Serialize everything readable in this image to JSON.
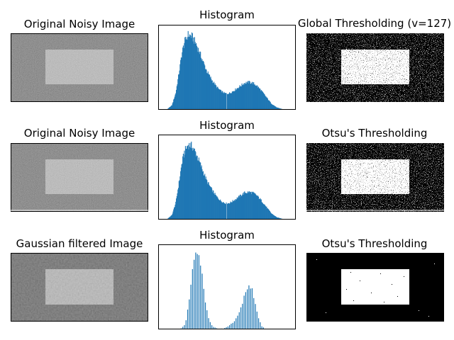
{
  "figure": {
    "background": "#ffffff",
    "bar_color": "#1f77b4",
    "axes_color": "#000000"
  },
  "panels": [
    {
      "title": "Original Noisy Image",
      "kind": "image",
      "content": "noisy-image"
    },
    {
      "title": "Histogram",
      "kind": "histogram"
    },
    {
      "title": "Global Thresholding (v=127)",
      "kind": "image",
      "content": "global-threshold-image"
    },
    {
      "title": "Original Noisy Image",
      "kind": "image",
      "content": "noisy-image"
    },
    {
      "title": "Histogram",
      "kind": "histogram"
    },
    {
      "title": "Otsu's Thresholding",
      "kind": "image",
      "content": "otsu-threshold-image"
    },
    {
      "title": "Gaussian filtered Image",
      "kind": "image",
      "content": "gaussian-filtered-image"
    },
    {
      "title": "Histogram",
      "kind": "histogram"
    },
    {
      "title": "Otsu's Thresholding",
      "kind": "image",
      "content": "otsu-filtered-threshold-image"
    }
  ],
  "chart_data": [
    {
      "type": "bar",
      "title": "Histogram",
      "xlabel": "",
      "ylabel": "",
      "xlim": [
        0,
        255
      ],
      "ylim": [
        0,
        1.1
      ],
      "axis_ticks": "hidden",
      "grid": false,
      "bins": 256,
      "x": [
        0,
        15,
        25,
        32,
        38,
        43,
        48,
        55,
        62,
        70,
        80,
        90,
        100,
        108,
        115,
        122,
        127,
        133,
        140,
        150,
        160,
        168,
        175,
        182,
        190,
        200,
        210,
        220,
        230,
        240,
        250,
        255
      ],
      "values": [
        0,
        0,
        0.06,
        0.22,
        0.48,
        0.72,
        0.88,
        0.98,
        0.96,
        0.86,
        0.68,
        0.5,
        0.38,
        0.3,
        0.25,
        0.22,
        0.21,
        0.22,
        0.25,
        0.3,
        0.35,
        0.36,
        0.35,
        0.32,
        0.26,
        0.17,
        0.08,
        0.03,
        0.01,
        0,
        0,
        0
      ],
      "dip_bins": [
        127
      ]
    },
    {
      "type": "bar",
      "title": "Histogram",
      "xlabel": "",
      "ylabel": "",
      "xlim": [
        0,
        255
      ],
      "ylim": [
        0,
        1.1
      ],
      "axis_ticks": "hidden",
      "grid": false,
      "bins": 256,
      "x": [
        0,
        15,
        25,
        32,
        38,
        43,
        48,
        55,
        62,
        70,
        80,
        90,
        100,
        108,
        115,
        122,
        127,
        133,
        140,
        150,
        160,
        168,
        175,
        182,
        190,
        200,
        210,
        220,
        230,
        240,
        250,
        255
      ],
      "values": [
        0,
        0,
        0.06,
        0.22,
        0.48,
        0.72,
        0.88,
        0.98,
        0.96,
        0.86,
        0.68,
        0.5,
        0.38,
        0.3,
        0.25,
        0.22,
        0.21,
        0.22,
        0.25,
        0.3,
        0.35,
        0.36,
        0.35,
        0.32,
        0.26,
        0.17,
        0.08,
        0.03,
        0.01,
        0,
        0,
        0
      ],
      "dip_bins": [
        127
      ]
    },
    {
      "type": "bar",
      "title": "Histogram",
      "xlabel": "",
      "ylabel": "",
      "xlim": [
        0,
        255
      ],
      "ylim": [
        0,
        1.1
      ],
      "axis_ticks": "hidden",
      "grid": false,
      "bins": 256,
      "x": [
        0,
        40,
        50,
        58,
        65,
        70,
        75,
        80,
        85,
        92,
        100,
        110,
        120,
        130,
        140,
        150,
        158,
        165,
        170,
        175,
        180,
        186,
        192,
        200,
        255
      ],
      "values": [
        0,
        0,
        0.07,
        0.45,
        0.88,
        0.98,
        0.95,
        0.75,
        0.45,
        0.16,
        0.04,
        0.01,
        0.01,
        0.04,
        0.1,
        0.22,
        0.4,
        0.53,
        0.56,
        0.5,
        0.33,
        0.14,
        0.04,
        0,
        0
      ],
      "comb_step": 3
    }
  ]
}
